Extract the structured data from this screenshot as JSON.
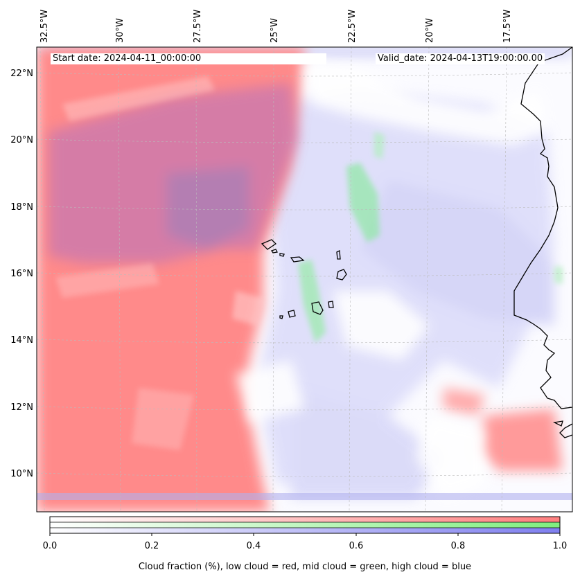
{
  "map": {
    "start_date": "Start date: 2024-04-11_00:00:00",
    "valid_date": "Valid_date: 2024-04-13T19:00:00.00",
    "lon_ticks": [
      "32.5°W",
      "30°W",
      "27.5°W",
      "25°W",
      "22.5°W",
      "20°W",
      "17.5°W"
    ],
    "lat_ticks": [
      "22°N",
      "20°N",
      "18°N",
      "16°N",
      "14°N",
      "12°N",
      "10°N"
    ],
    "colors": {
      "low_cloud": "#ff7f7f",
      "mid_cloud": "#7fef7f",
      "high_cloud": "#7f7fef"
    }
  },
  "colorbar": {
    "ticks": [
      "0.0",
      "0.2",
      "0.4",
      "0.6",
      "0.8",
      "1.0"
    ],
    "label": "Cloud fraction (%), low cloud = red, mid cloud = green, high cloud = blue"
  }
}
